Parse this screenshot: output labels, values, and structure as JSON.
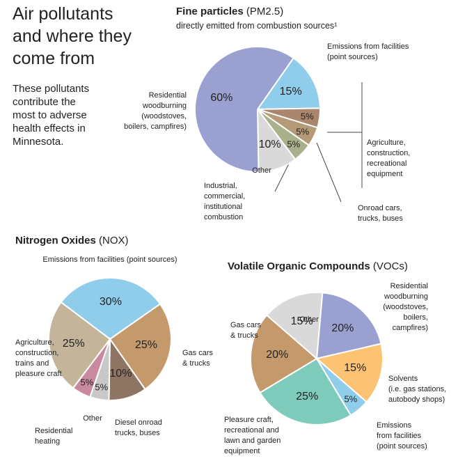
{
  "header": {
    "title": "Air pollutants\nand where they\ncome from",
    "description": "These pollutants\ncontribute the\nmost to adverse\nhealth effects in\nMinnesota."
  },
  "chart_data": [
    {
      "type": "pie",
      "title": "Fine particles",
      "abbreviation": "(PM2.5)",
      "subtitle": "directly emitted from combustion sources¹",
      "categories": [
        "Emissions from facilities\n(point sources)",
        "Agriculture,\nconstruction,\nrecreational\nequipment",
        "Onroad cars,\ntrucks, buses",
        "Industrial,\ncommercial,\ninstitutional\ncombustion",
        "Other",
        "Residential\nwoodburning\n(woodstoves,\nboilers, campfires)"
      ],
      "values": [
        15,
        5,
        5,
        5,
        10,
        60
      ],
      "value_labels": [
        "15%",
        "5%",
        "5%",
        "5%",
        "10%",
        "60%"
      ],
      "colors": [
        "#8fcdeb",
        "#a9866d",
        "#b59a78",
        "#a8b08c",
        "#d9d9d9",
        "#9aa0d0"
      ]
    },
    {
      "type": "pie",
      "title": "Nitrogen Oxides",
      "abbreviation": "(NOX)",
      "categories": [
        "Emissions from facilities (point sources)",
        "Gas cars\n& trucks",
        "Diesel onroad\ntrucks, buses",
        "Other",
        "Residential\nheating",
        "Agriculture,\nconstruction,\ntrains and\npleasure craft"
      ],
      "values": [
        30,
        25,
        10,
        5,
        5,
        25
      ],
      "value_labels": [
        "30%",
        "25%",
        "10%",
        "5%",
        "5%",
        "25%"
      ],
      "colors": [
        "#8fcdeb",
        "#c49a6c",
        "#8e7462",
        "#c8c8c8",
        "#c98aa0",
        "#c4b49a"
      ]
    },
    {
      "type": "pie",
      "title": "Volatile Organic Compounds",
      "abbreviation": "(VOCs)",
      "categories": [
        "Residential\nwoodburning\n(woodstoves,\nboilers,\ncampfires)",
        "Solvents\n(i.e. gas stations,\nautobody shops)",
        "Emissions\nfrom facilities\n(point sources)",
        "Pleasure craft,\nrecreational and\nlawn and garden\nequipment",
        "Gas cars\n& trucks",
        "Other"
      ],
      "values": [
        20,
        15,
        5,
        25,
        20,
        15
      ],
      "value_labels": [
        "20%",
        "15%",
        "5%",
        "25%",
        "20%",
        "15%"
      ],
      "colors": [
        "#9aa0d0",
        "#fdc374",
        "#8fcdeb",
        "#7ecbbc",
        "#c49a6c",
        "#d9d9d9"
      ]
    }
  ]
}
